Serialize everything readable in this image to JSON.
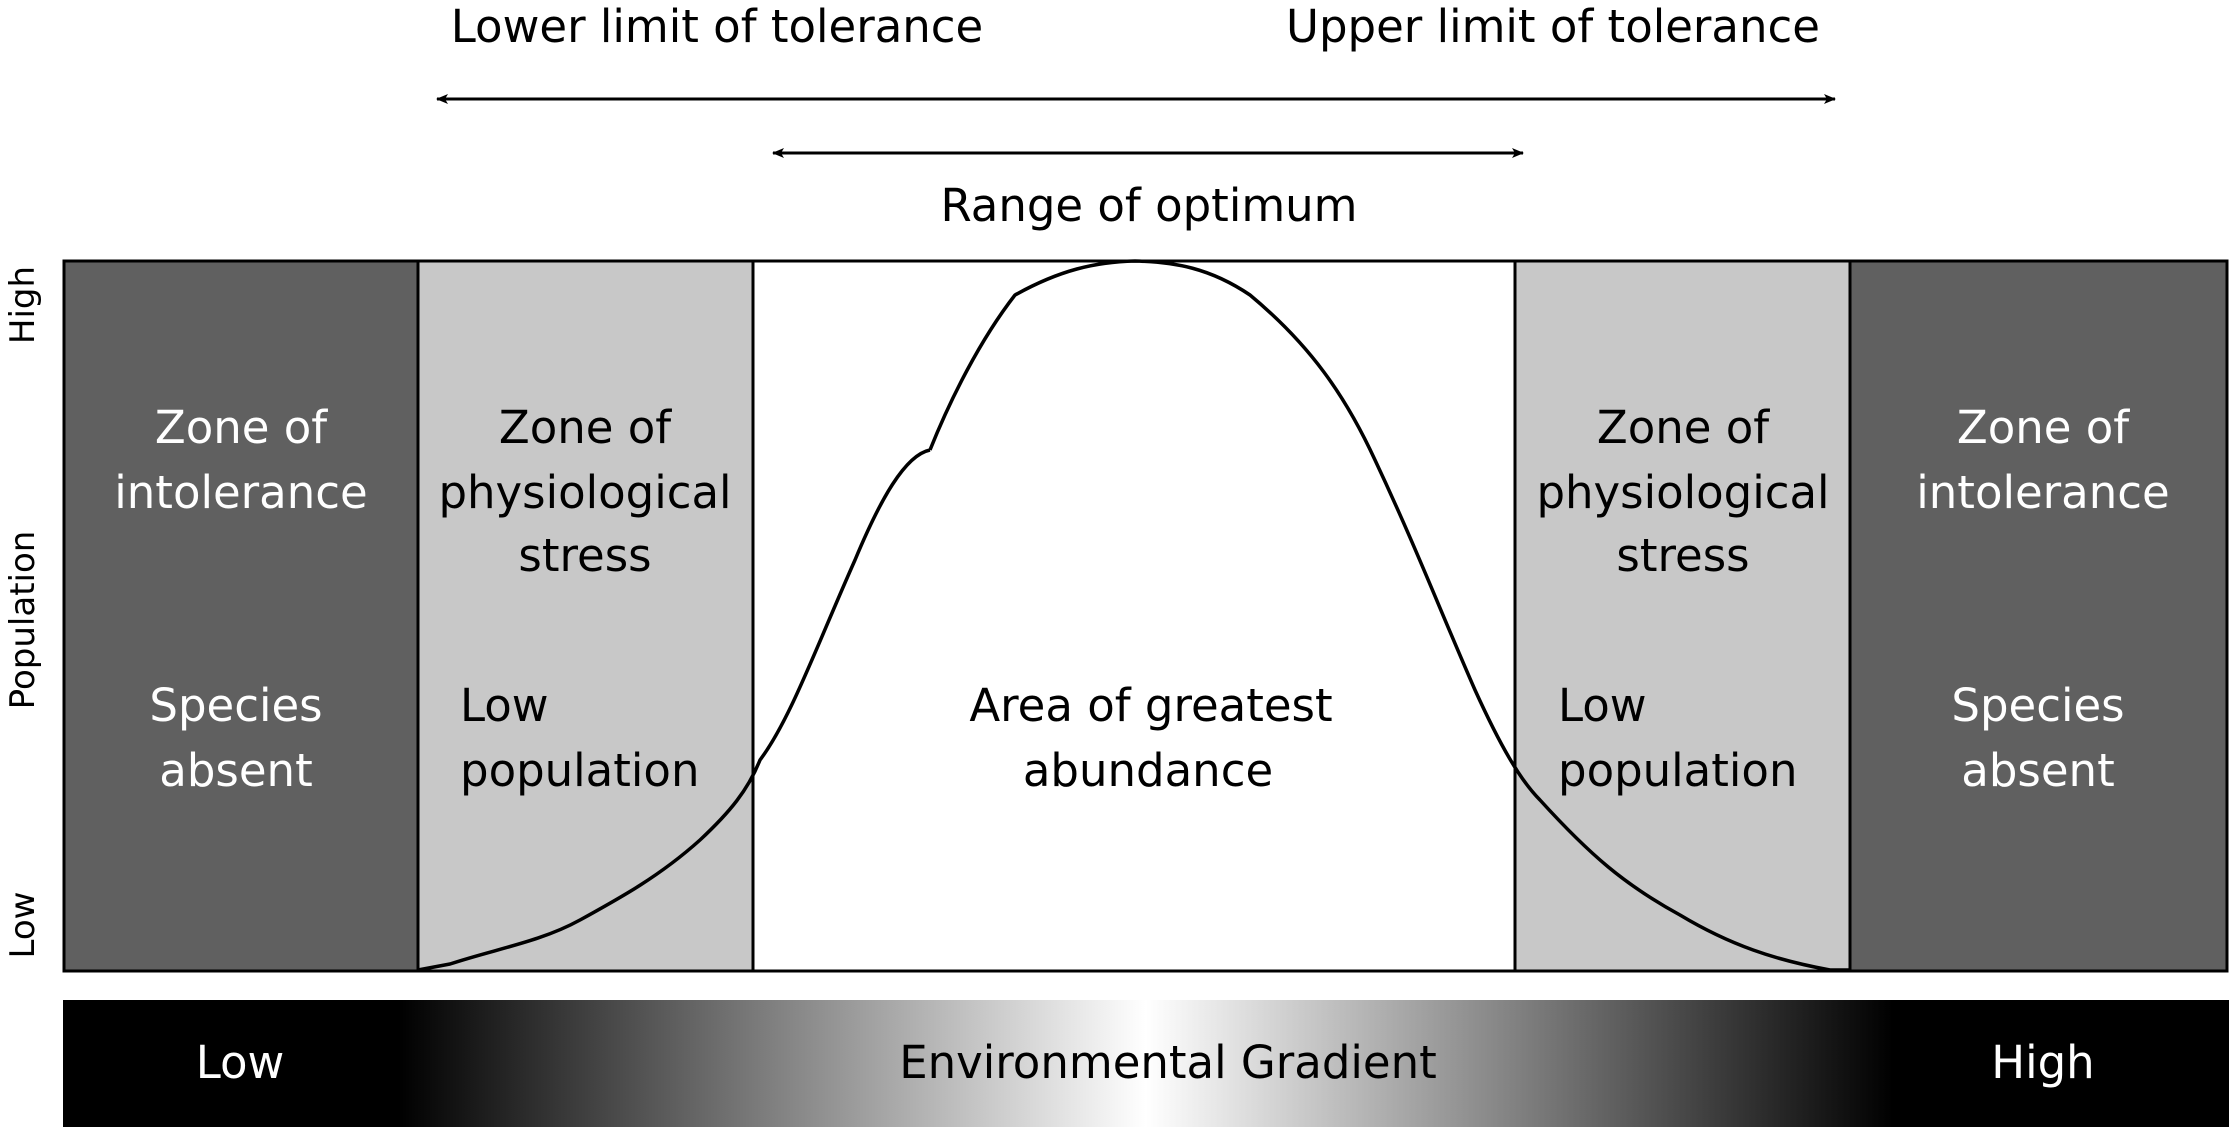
{
  "top_labels": {
    "lower_limit": "Lower limit of tolerance",
    "upper_limit": "Upper limit of tolerance",
    "optimum": "Range of optimum"
  },
  "y_axis": {
    "high": "High",
    "label": "Population",
    "low": "Low"
  },
  "zones": {
    "left_intolerance": {
      "title_line1": "Zone of",
      "title_line2": "intolerance",
      "desc_line1": "Species",
      "desc_line2": "absent"
    },
    "left_stress": {
      "title_line1": "Zone of",
      "title_line2": "physiological",
      "title_line3": "stress",
      "desc_line1": "Low",
      "desc_line2": "population"
    },
    "optimum": {
      "desc_line1": "Area of greatest",
      "desc_line2": "abundance"
    },
    "right_stress": {
      "title_line1": "Zone of",
      "title_line2": "physiological",
      "title_line3": "stress",
      "desc_line1": "Low",
      "desc_line2": "population"
    },
    "right_intolerance": {
      "title_line1": "Zone of",
      "title_line2": "intolerance",
      "desc_line1": "Species",
      "desc_line2": "absent"
    }
  },
  "gradient_bar": {
    "low": "Low",
    "label": "Environmental Gradient",
    "high": "High"
  },
  "colors": {
    "intolerance_zone": "#606060",
    "stress_zone": "#c8c8c8",
    "optimum_zone": "#ffffff",
    "outline": "#000000"
  }
}
